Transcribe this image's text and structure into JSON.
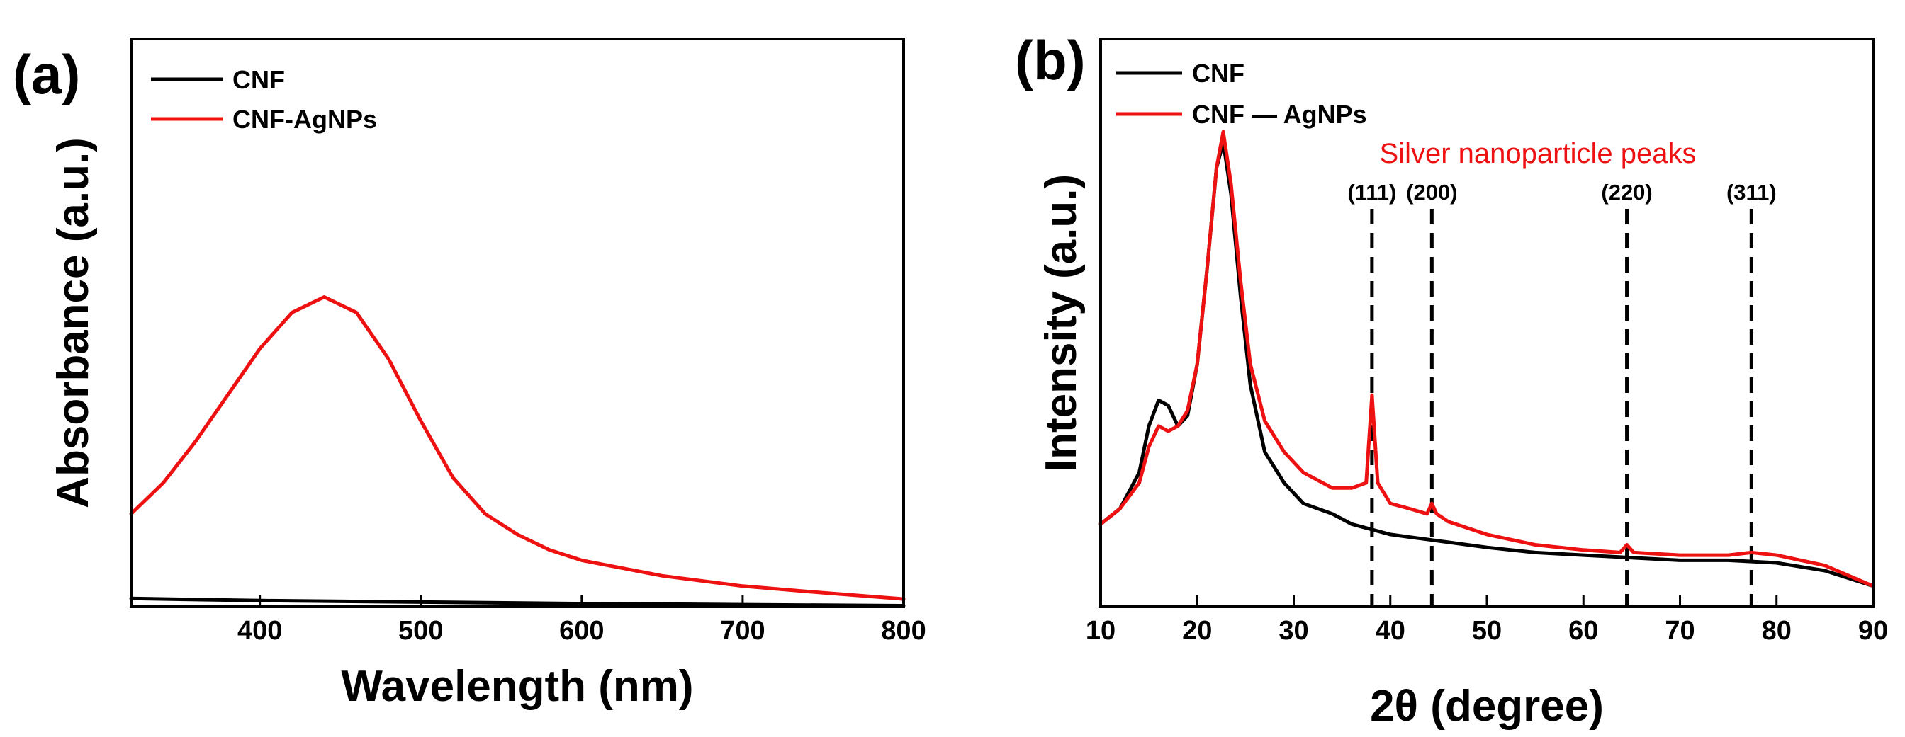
{
  "chart_data": [
    {
      "type": "line",
      "panel": "(a)",
      "title": "",
      "xlabel": "Wavelength (nm)",
      "ylabel": "Absorbance (a.u.)",
      "xlim": [
        320,
        800
      ],
      "ylim": [
        0,
        1.1
      ],
      "xticks": [
        400,
        500,
        600,
        700,
        800
      ],
      "yticks_shown": false,
      "legend_position": "top-left",
      "series": [
        {
          "name": "CNF",
          "color": "#000000",
          "x": [
            320,
            400,
            500,
            600,
            700,
            800
          ],
          "y": [
            0.016,
            0.012,
            0.009,
            0.006,
            0.004,
            0.002
          ]
        },
        {
          "name": "CNF-AgNPs",
          "color": "#ee1111",
          "x": [
            320,
            340,
            360,
            380,
            400,
            420,
            440,
            460,
            480,
            500,
            520,
            540,
            560,
            580,
            600,
            650,
            700,
            750,
            800
          ],
          "y": [
            0.18,
            0.24,
            0.32,
            0.41,
            0.5,
            0.57,
            0.6,
            0.57,
            0.48,
            0.36,
            0.25,
            0.18,
            0.14,
            0.11,
            0.09,
            0.06,
            0.04,
            0.027,
            0.015
          ]
        }
      ]
    },
    {
      "type": "line",
      "panel": "(b)",
      "title": "",
      "xlabel": "2θ (degree)",
      "ylabel": "Intensity (a.u.)",
      "xlim": [
        10,
        90
      ],
      "ylim": [
        0,
        1.1
      ],
      "xticks": [
        10,
        20,
        30,
        40,
        50,
        60,
        70,
        80,
        90
      ],
      "yticks_shown": false,
      "legend_position": "top-left",
      "annotation": "Silver nanoparticle peaks",
      "annotation_color": "#ee1111",
      "peak_markers": [
        {
          "label": "(111)",
          "x": 38.1
        },
        {
          "label": "(200)",
          "x": 44.3
        },
        {
          "label": "(220)",
          "x": 64.5
        },
        {
          "label": "(311)",
          "x": 77.4
        }
      ],
      "series": [
        {
          "name": "CNF",
          "color": "#000000",
          "x": [
            10,
            12,
            14,
            15,
            16,
            17,
            18,
            19,
            20,
            21,
            22,
            22.7,
            23.5,
            24.5,
            25.5,
            27,
            29,
            31,
            34,
            36,
            38,
            40,
            42,
            44,
            46,
            50,
            55,
            60,
            65,
            70,
            75,
            80,
            85,
            90
          ],
          "y": [
            0.16,
            0.19,
            0.26,
            0.35,
            0.4,
            0.39,
            0.35,
            0.37,
            0.47,
            0.65,
            0.85,
            0.9,
            0.8,
            0.6,
            0.43,
            0.3,
            0.24,
            0.2,
            0.18,
            0.16,
            0.15,
            0.14,
            0.135,
            0.13,
            0.125,
            0.115,
            0.105,
            0.1,
            0.095,
            0.09,
            0.09,
            0.085,
            0.07,
            0.04
          ]
        },
        {
          "name": "CNF — AgNPs",
          "color": "#ee1111",
          "x": [
            10,
            12,
            14,
            15,
            16,
            17,
            18,
            19,
            20,
            21,
            22,
            22.7,
            23.5,
            24.5,
            25.5,
            27,
            29,
            31,
            34,
            36,
            37.5,
            38.1,
            38.7,
            40,
            42,
            43.8,
            44.3,
            44.8,
            46,
            50,
            55,
            60,
            63.8,
            64.5,
            65.2,
            70,
            75,
            77.4,
            80,
            85,
            90
          ],
          "y": [
            0.16,
            0.19,
            0.24,
            0.31,
            0.35,
            0.34,
            0.35,
            0.38,
            0.47,
            0.65,
            0.85,
            0.92,
            0.82,
            0.63,
            0.47,
            0.36,
            0.3,
            0.26,
            0.23,
            0.23,
            0.24,
            0.41,
            0.24,
            0.2,
            0.19,
            0.18,
            0.2,
            0.18,
            0.165,
            0.14,
            0.12,
            0.11,
            0.105,
            0.12,
            0.105,
            0.1,
            0.1,
            0.105,
            0.1,
            0.08,
            0.04
          ]
        }
      ]
    }
  ]
}
